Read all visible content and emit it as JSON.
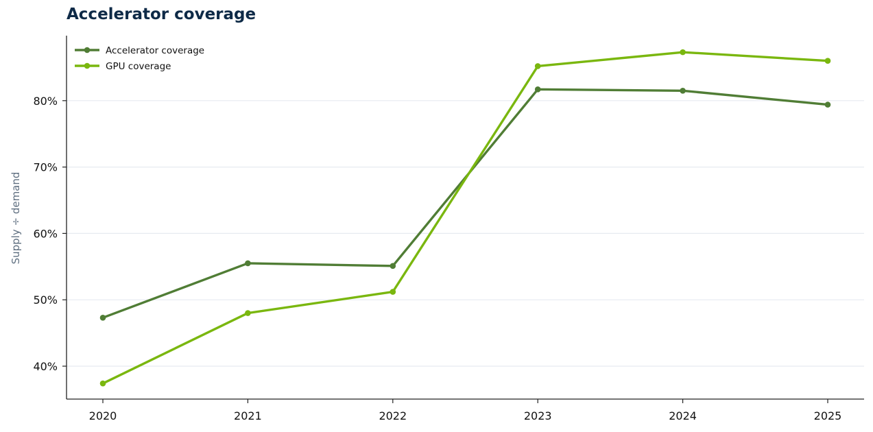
{
  "chart_data": {
    "type": "line",
    "title": "Accelerator coverage",
    "xlabel": "",
    "ylabel": "Supply ÷ demand",
    "x": [
      "2020",
      "2021",
      "2022",
      "2023",
      "2024",
      "2025"
    ],
    "y_ticks": [
      0.4,
      0.5,
      0.6,
      0.7,
      0.8
    ],
    "y_tick_labels": [
      "40%",
      "50%",
      "60%",
      "70%",
      "80%"
    ],
    "ylim": [
      0.35,
      0.9
    ],
    "grid": "horizontal",
    "legend_position": "top-left",
    "series": [
      {
        "name": "Accelerator coverage",
        "color": "#507d35",
        "values": [
          0.473,
          0.555,
          0.551,
          0.817,
          0.815,
          0.794
        ]
      },
      {
        "name": "GPU coverage",
        "color": "#7ab70f",
        "values": [
          0.374,
          0.48,
          0.512,
          0.852,
          0.873,
          0.86
        ]
      }
    ]
  }
}
